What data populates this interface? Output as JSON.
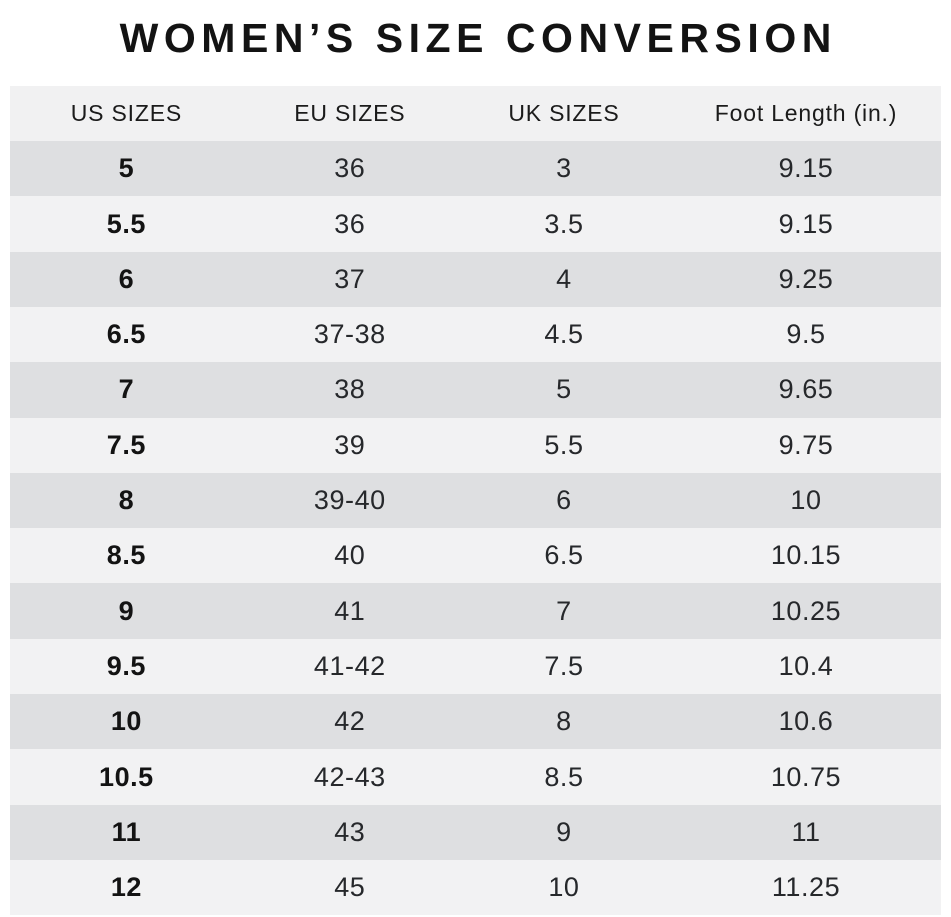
{
  "title": "WOMEN’S SIZE CONVERSION",
  "colors": {
    "row_dark": "#dedfe1",
    "row_light": "#f2f2f3",
    "header_bg": "#f1f1f2",
    "text": "#26282b"
  },
  "chart_data": {
    "type": "table",
    "title": "WOMEN’S SIZE CONVERSION",
    "columns": [
      "US SIZES",
      "EU SIZES",
      "UK SIZES",
      "Foot Length (in.)"
    ],
    "rows": [
      [
        "5",
        "36",
        "3",
        "9.15"
      ],
      [
        "5.5",
        "36",
        "3.5",
        "9.15"
      ],
      [
        "6",
        "37",
        "4",
        "9.25"
      ],
      [
        "6.5",
        "37-38",
        "4.5",
        "9.5"
      ],
      [
        "7",
        "38",
        "5",
        "9.65"
      ],
      [
        "7.5",
        "39",
        "5.5",
        "9.75"
      ],
      [
        "8",
        "39-40",
        "6",
        "10"
      ],
      [
        "8.5",
        "40",
        "6.5",
        "10.15"
      ],
      [
        "9",
        "41",
        "7",
        "10.25"
      ],
      [
        "9.5",
        "41-42",
        "7.5",
        "10.4"
      ],
      [
        "10",
        "42",
        "8",
        "10.6"
      ],
      [
        "10.5",
        "42-43",
        "8.5",
        "10.75"
      ],
      [
        "11",
        "43",
        "9",
        "11"
      ],
      [
        "12",
        "45",
        "10",
        "11.25"
      ]
    ],
    "layout_hints": {
      "alternating_rows": true,
      "first_row_shade": "dark",
      "bold_first_column": true,
      "grid": false
    }
  }
}
